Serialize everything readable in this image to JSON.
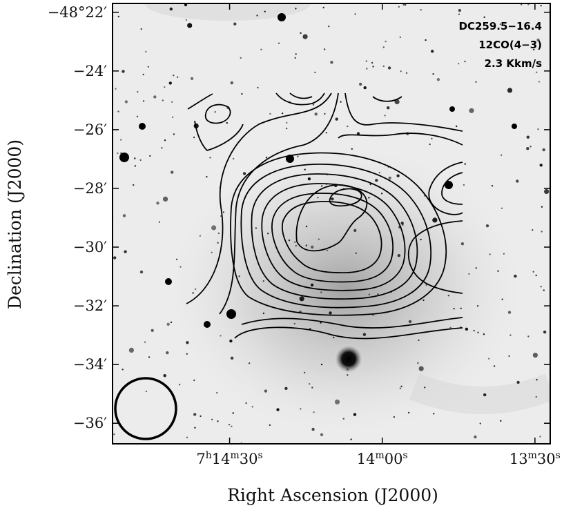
{
  "chart_data": {
    "type": "contour",
    "annotation_lines": [
      "DC259.5−16.4",
      "12CO(4−3)",
      "2.3 Kkm/s"
    ],
    "xlabel": "Right Ascension (J2000)",
    "ylabel": "Declination (J2000)",
    "x_ticks": [
      {
        "h": "7",
        "hu": "h",
        "m": "14",
        "mu": "m",
        "s": "30",
        "su": "s"
      },
      {
        "h": "",
        "hu": "",
        "m": "14",
        "mu": "m",
        "s": "00",
        "su": "s"
      },
      {
        "h": "",
        "hu": "",
        "m": "13",
        "mu": "m",
        "s": "30",
        "su": "s"
      }
    ],
    "y_ticks": [
      "−48°22′",
      "−24′",
      "−26′",
      "−28′",
      "−30′",
      "−32′",
      "−34′",
      "−36′"
    ],
    "xlim_sec": [
      53,
      -33
    ],
    "x_tick_sec": [
      30,
      0,
      -30
    ],
    "ylim_arcmin": [
      -21.7,
      -36.7
    ],
    "y_tick_arcmin": [
      -22,
      -24,
      -26,
      -28,
      -30,
      -32,
      -34,
      -36
    ],
    "background": "grayscale optical image (star field)",
    "beam_marker": "circle, lower-left",
    "contour_color": "#000000"
  }
}
